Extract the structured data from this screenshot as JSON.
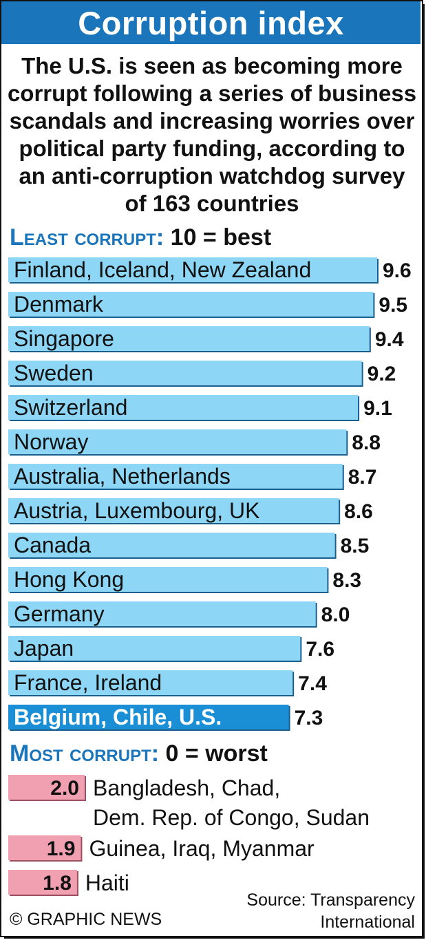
{
  "title": "Corruption index",
  "intro": "The U.S. is seen as becoming more corrupt following a series of business scandals and increasing worries over political party funding, according to an anti-corruption watchdog survey of 163 countries",
  "least_heading": "Least corrupt:",
  "least_note": "10 = best",
  "most_heading": "Most corrupt:",
  "most_note": "0 = worst",
  "colors": {
    "header_blue": "#1b75bb",
    "bar_light_blue": "#8dd6f5",
    "bar_highlight": "#1b8fd6",
    "bar_pink": "#f0a0b0"
  },
  "chart_data": [
    {
      "type": "bar",
      "orientation": "horizontal",
      "categories": [
        "Finland, Iceland, New Zealand",
        "Denmark",
        "Singapore",
        "Sweden",
        "Switzerland",
        "Norway",
        "Australia, Netherlands",
        "Austria, Luxembourg, UK",
        "Canada",
        "Hong Kong",
        "Germany",
        "Japan",
        "France, Ireland",
        "Belgium, Chile, U.S."
      ],
      "values": [
        9.6,
        9.5,
        9.4,
        9.2,
        9.1,
        8.8,
        8.7,
        8.6,
        8.5,
        8.3,
        8.0,
        7.6,
        7.4,
        7.3
      ],
      "value_labels": [
        "9.6",
        "9.5",
        "9.4",
        "9.2",
        "9.1",
        "8.8",
        "8.7",
        "8.6",
        "8.5",
        "8.3",
        "8.0",
        "7.6",
        "7.4",
        "7.3"
      ],
      "highlight": "Belgium, Chile, U.S."
    },
    {
      "type": "bar",
      "orientation": "horizontal",
      "categories": [
        [
          "Bangladesh, Chad,",
          "Dem. Rep. of Congo, Sudan"
        ],
        [
          "Guinea, Iraq, Myanmar"
        ],
        [
          "Haiti"
        ]
      ],
      "values": [
        2.0,
        1.9,
        1.8
      ],
      "value_labels": [
        "2.0",
        "1.9",
        "1.8"
      ]
    }
  ],
  "source": "Source: Transparency International",
  "credit": "© GRAPHIC NEWS"
}
